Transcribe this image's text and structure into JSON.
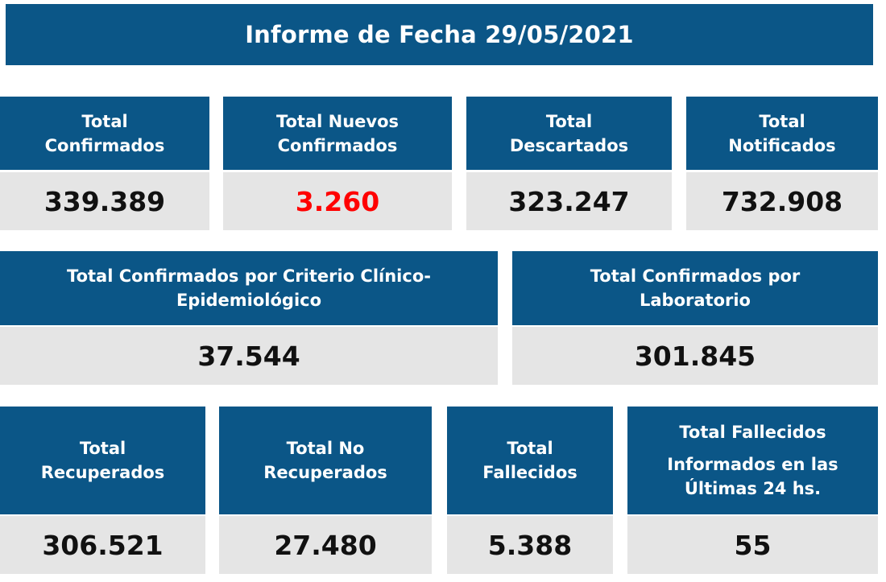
{
  "title": "Informe de Fecha 29/05/2021",
  "colors": {
    "header_bg": "#0b5687",
    "value_bg": "#e5e5e5",
    "highlight": "#ff0000"
  },
  "row1": [
    {
      "label_lines": [
        "Total",
        "Confirmados"
      ],
      "value": "339.389"
    },
    {
      "label_lines": [
        "Total Nuevos",
        "Confirmados"
      ],
      "value": "3.260",
      "highlight": true
    },
    {
      "label_lines": [
        "Total",
        "Descartados"
      ],
      "value": "323.247"
    },
    {
      "label_lines": [
        "Total",
        "Notificados"
      ],
      "value": "732.908"
    }
  ],
  "row2": [
    {
      "label_lines": [
        "Total Confirmados por Criterio Clínico-",
        "Epidemiológico"
      ],
      "value": "37.544"
    },
    {
      "label_lines": [
        "Total Confirmados por",
        "Laboratorio"
      ],
      "value": "301.845"
    }
  ],
  "row3": [
    {
      "label_lines": [
        "Total",
        "Recuperados"
      ],
      "value": "306.521"
    },
    {
      "label_lines": [
        "Total No",
        "Recuperados"
      ],
      "value": "27.480"
    },
    {
      "label_lines": [
        "Total",
        "Fallecidos"
      ],
      "value": "5.388"
    },
    {
      "label_lines": [
        "Total Fallecidos",
        "Informados en las",
        "Últimas 24 hs."
      ],
      "value": "55"
    }
  ]
}
